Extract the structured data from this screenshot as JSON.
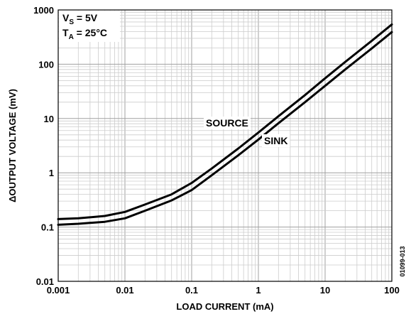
{
  "chart_data": {
    "type": "line",
    "title": "",
    "xlabel": "LOAD CURRENT (mA)",
    "ylabel": "ΔOUTPUT VOLTAGE (mV)",
    "x_scale": "log",
    "y_scale": "log",
    "xlim": [
      0.001,
      100
    ],
    "ylim": [
      0.01,
      1000
    ],
    "x_ticks": [
      "0.001",
      "0.01",
      "0.1",
      "1",
      "10",
      "100"
    ],
    "y_ticks": [
      "0.01",
      "0.1",
      "1",
      "10",
      "100",
      "1000"
    ],
    "grid": true,
    "conditions": {
      "vs_main": "V",
      "vs_sub": "S",
      "vs_rest": " = 5V",
      "ta_main": "T",
      "ta_sub": "A",
      "ta_rest": " = 25°C"
    },
    "figure_id": "01099-013",
    "line_color": "#000000",
    "series": [
      {
        "name": "SOURCE",
        "x": [
          0.001,
          0.002,
          0.005,
          0.01,
          0.02,
          0.05,
          0.1,
          0.2,
          0.5,
          1,
          2,
          5,
          10,
          20,
          50,
          100
        ],
        "y": [
          0.14,
          0.145,
          0.16,
          0.19,
          0.26,
          0.4,
          0.65,
          1.2,
          2.8,
          5.5,
          11,
          27,
          55,
          110,
          270,
          540
        ]
      },
      {
        "name": "SINK",
        "x": [
          0.001,
          0.002,
          0.005,
          0.01,
          0.02,
          0.05,
          0.1,
          0.2,
          0.5,
          1,
          2,
          5,
          10,
          20,
          50,
          100
        ],
        "y": [
          0.11,
          0.115,
          0.125,
          0.145,
          0.2,
          0.31,
          0.48,
          0.9,
          2.1,
          4.1,
          8.2,
          20,
          40,
          80,
          195,
          390
        ]
      }
    ]
  }
}
